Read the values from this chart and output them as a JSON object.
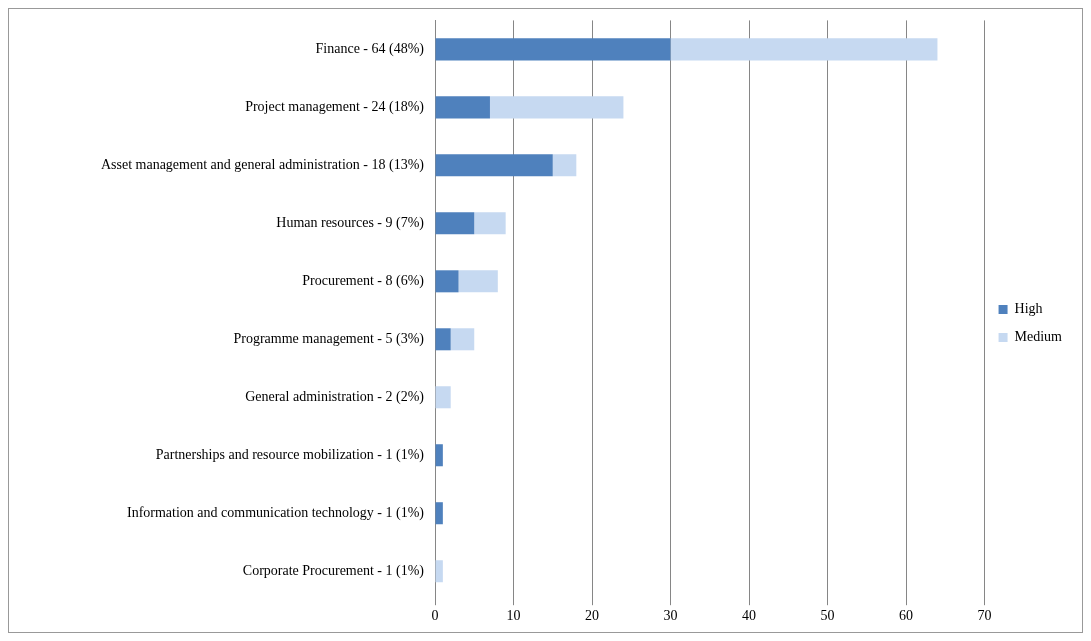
{
  "chart_data": {
    "type": "bar",
    "orientation": "horizontal",
    "stacked": true,
    "categories": [
      "Finance - 64 (48%)",
      "Project management - 24 (18%)",
      "Asset management and general administration - 18 (13%)",
      "Human resources - 9 (7%)",
      "Procurement - 8 (6%)",
      "Programme management - 5 (3%)",
      "General administration - 2 (2%)",
      "Partnerships and resource mobilization - 1 (1%)",
      "Information and communication technology - 1 (1%)",
      "Corporate Procurement - 1 (1%)"
    ],
    "series": [
      {
        "name": "High",
        "color": "#4f81bd",
        "values": [
          30,
          7,
          15,
          5,
          3,
          2,
          0,
          1,
          1,
          0
        ]
      },
      {
        "name": "Medium",
        "color": "#c6d9f1",
        "values": [
          34,
          17,
          3,
          4,
          5,
          3,
          2,
          0,
          0,
          1
        ]
      }
    ],
    "xlim": [
      0,
      70
    ],
    "xticks": [
      0,
      10,
      20,
      30,
      40,
      50,
      60,
      70
    ],
    "grid": "x",
    "legend": "right"
  }
}
